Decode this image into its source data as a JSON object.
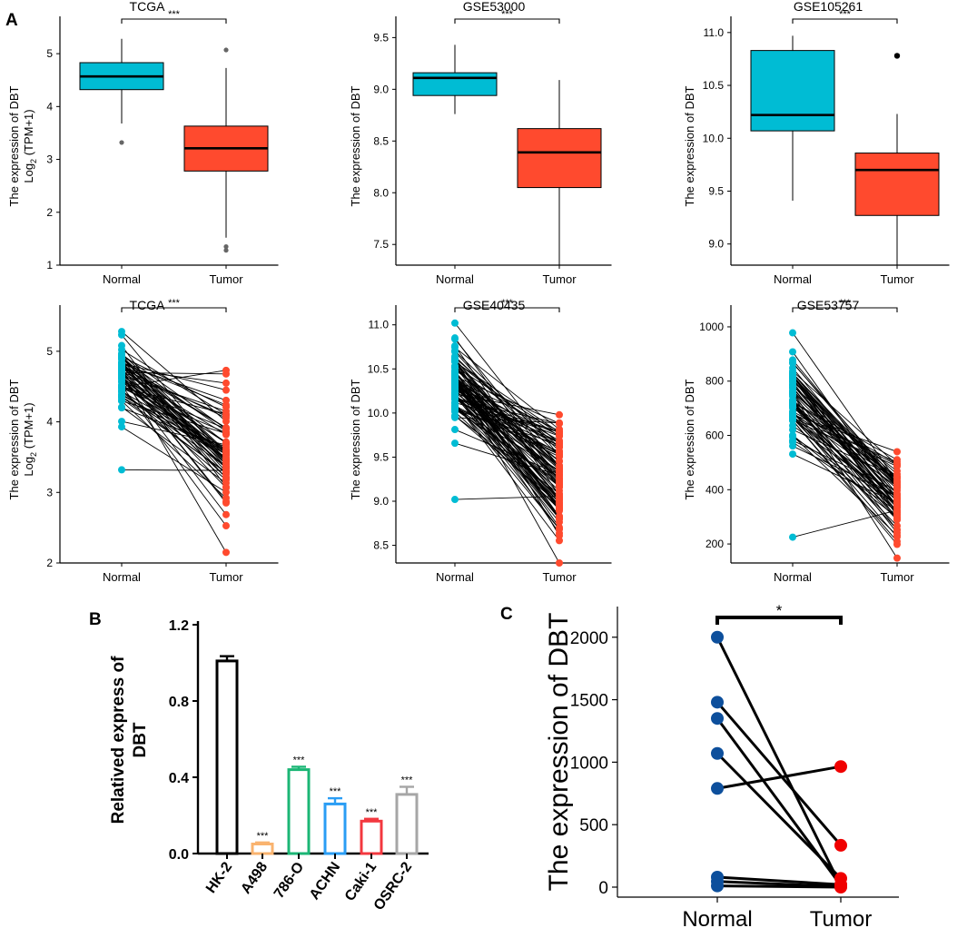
{
  "panel_labels": {
    "a": "A",
    "b": "B",
    "c": "C"
  },
  "colors": {
    "normal": "#00BCD4",
    "tumor": "#FF4A2E",
    "normal_dark": "#0D4F9C",
    "tumor_bright": "#F00000",
    "axis": "#000000",
    "outlier": "#666666"
  },
  "chart_data": [
    {
      "id": "a1",
      "type": "box",
      "title": "TCGA",
      "ylabel": "The expression of DBT",
      "ylabel_line2_pre": "Log",
      "ylabel_line2_sub": "2",
      "ylabel_line2_post": " (TPM+1)",
      "categories": [
        "Normal",
        "Tumor"
      ],
      "ylim": [
        1,
        5.5
      ],
      "ticks": [
        1,
        2,
        3,
        4,
        5
      ],
      "tick_labels": [
        "1",
        "2",
        "3",
        "4",
        "5"
      ],
      "significance": "***",
      "boxes": [
        {
          "q1": 4.32,
          "median": 4.57,
          "q3": 4.83,
          "whisker_low": 3.68,
          "whisker_high": 5.28,
          "outliers": [
            3.32
          ]
        },
        {
          "q1": 2.78,
          "median": 3.21,
          "q3": 3.63,
          "whisker_low": 1.52,
          "whisker_high": 4.73,
          "outliers": [
            5.07,
            1.35,
            1.28
          ]
        }
      ]
    },
    {
      "id": "a2",
      "type": "box",
      "title": "GSE53000",
      "ylabel": "The expression of DBT",
      "categories": [
        "Normal",
        "Tumor"
      ],
      "ylim": [
        7.3,
        9.6
      ],
      "ticks": [
        7.5,
        8.0,
        8.5,
        9.0,
        9.5
      ],
      "tick_labels": [
        "7.5",
        "8.0",
        "8.5",
        "9.0",
        "9.5"
      ],
      "significance": "***",
      "boxes": [
        {
          "q1": 8.94,
          "median": 9.11,
          "q3": 9.16,
          "whisker_low": 8.76,
          "whisker_high": 9.43,
          "outliers": []
        },
        {
          "q1": 8.05,
          "median": 8.39,
          "q3": 8.62,
          "whisker_low": 7.3,
          "whisker_high": 9.09,
          "outliers": []
        }
      ]
    },
    {
      "id": "a3",
      "type": "box",
      "title": "GSE105261",
      "ylabel": "The expression of DBT",
      "categories": [
        "Normal",
        "Tumor"
      ],
      "ylim": [
        8.8,
        11.05
      ],
      "ticks": [
        9.0,
        9.5,
        10.0,
        10.5,
        11.0
      ],
      "tick_labels": [
        "9.0",
        "9.5",
        "10.0",
        "10.5",
        "11.0"
      ],
      "significance": "***",
      "boxes": [
        {
          "q1": 10.07,
          "median": 10.22,
          "q3": 10.83,
          "whisker_low": 9.41,
          "whisker_high": 10.97,
          "outliers": []
        },
        {
          "q1": 9.27,
          "median": 9.7,
          "q3": 9.86,
          "whisker_low": 8.8,
          "whisker_high": 10.23,
          "outliers": [
            10.78
          ]
        }
      ]
    },
    {
      "id": "a4",
      "type": "paired",
      "title": "TCGA",
      "ylabel": "The expression of DBT",
      "ylabel_line2_pre": "Log",
      "ylabel_line2_sub": "2",
      "ylabel_line2_post": " (TPM+1)",
      "categories": [
        "Normal",
        "Tumor"
      ],
      "ylim": [
        2.0,
        5.5
      ],
      "ticks": [
        2,
        3,
        4,
        5
      ],
      "tick_labels": [
        "2",
        "3",
        "4",
        "5"
      ],
      "significance": "***",
      "normal_range": [
        3.32,
        5.28
      ],
      "tumor_range": [
        2.15,
        4.73
      ],
      "n_pairs": 72,
      "seed": 11
    },
    {
      "id": "a5",
      "type": "paired",
      "title": "GSE40435",
      "ylabel": "The expression of DBT",
      "categories": [
        "Normal",
        "Tumor"
      ],
      "ylim": [
        8.3,
        11.1
      ],
      "ticks": [
        8.5,
        9.0,
        9.5,
        10.0,
        10.5,
        11.0
      ],
      "tick_labels": [
        "8.5",
        "9.0",
        "9.5",
        "10.0",
        "10.5",
        "11.0"
      ],
      "significance": "***",
      "normal_range": [
        9.02,
        11.02
      ],
      "tumor_range": [
        8.3,
        9.98
      ],
      "n_pairs": 101,
      "seed": 23
    },
    {
      "id": "a6",
      "type": "paired",
      "title": "GSE53757",
      "ylabel": "The expression of DBT",
      "categories": [
        "Normal",
        "Tumor"
      ],
      "ylim": [
        130,
        1040
      ],
      "ticks": [
        200,
        400,
        600,
        800,
        1000
      ],
      "tick_labels": [
        "200",
        "400",
        "600",
        "800",
        "1000"
      ],
      "significance": "***",
      "normal_range": [
        225,
        978
      ],
      "tumor_range": [
        148,
        540
      ],
      "n_pairs": 72,
      "seed": 37
    },
    {
      "id": "b",
      "type": "bar",
      "ylabel_line1": "Relatived express of",
      "ylabel_line2": "DBT",
      "categories": [
        "HK-2",
        "A498",
        "786-O",
        "ACHN",
        "Caki-1",
        "OSRC-2"
      ],
      "values": [
        1.01,
        0.05,
        0.44,
        0.26,
        0.17,
        0.31
      ],
      "errors": [
        0.025,
        0.008,
        0.015,
        0.03,
        0.012,
        0.04
      ],
      "significance": [
        "",
        "***",
        "***",
        "***",
        "***",
        "***"
      ],
      "bar_colors": [
        "#000000",
        "#F9B36F",
        "#1BB675",
        "#2A9DF4",
        "#F3383F",
        "#A6A6A6"
      ],
      "ylim": [
        0,
        1.2
      ],
      "ticks": [
        0.0,
        0.4,
        0.8,
        1.2
      ],
      "tick_labels": [
        "0.0",
        "0.4",
        "0.8",
        "1.2"
      ]
    },
    {
      "id": "c",
      "type": "paired",
      "ylabel": "The expression of DBT",
      "categories": [
        "Normal",
        "Tumor"
      ],
      "ylim": [
        -80,
        2100
      ],
      "ticks": [
        0,
        500,
        1000,
        1500,
        2000
      ],
      "tick_labels": [
        "0",
        "500",
        "1000",
        "1500",
        "2000"
      ],
      "significance": "*",
      "pairs": [
        [
          2000,
          10
        ],
        [
          1480,
          335
        ],
        [
          1350,
          15
        ],
        [
          1070,
          70
        ],
        [
          790,
          965
        ],
        [
          80,
          20
        ],
        [
          45,
          5
        ],
        [
          10,
          0
        ]
      ]
    }
  ]
}
